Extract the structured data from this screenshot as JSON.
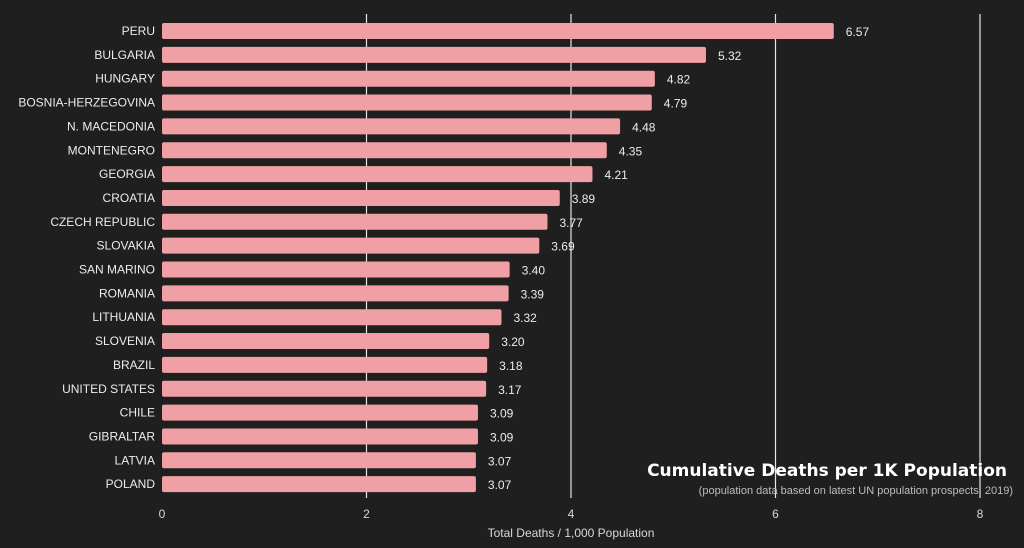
{
  "chart_data": {
    "type": "bar",
    "orientation": "horizontal",
    "categories": [
      "PERU",
      "BULGARIA",
      "HUNGARY",
      "BOSNIA-HERZEGOVINA",
      "N. MACEDONIA",
      "MONTENEGRO",
      "GEORGIA",
      "CROATIA",
      "CZECH REPUBLIC",
      "SLOVAKIA",
      "SAN MARINO",
      "ROMANIA",
      "LITHUANIA",
      "SLOVENIA",
      "BRAZIL",
      "UNITED STATES",
      "CHILE",
      "GIBRALTAR",
      "LATVIA",
      "POLAND"
    ],
    "values": [
      6.57,
      5.32,
      4.82,
      4.79,
      4.48,
      4.35,
      4.21,
      3.89,
      3.77,
      3.69,
      3.4,
      3.39,
      3.32,
      3.2,
      3.18,
      3.17,
      3.09,
      3.09,
      3.07,
      3.07
    ],
    "value_labels": [
      "6.57",
      "5.32",
      "4.82",
      "4.79",
      "4.48",
      "4.35",
      "4.21",
      "3.89",
      "3.77",
      "3.69",
      "3.40",
      "3.39",
      "3.32",
      "3.20",
      "3.18",
      "3.17",
      "3.09",
      "3.09",
      "3.07",
      "3.07"
    ],
    "xlabel": "Total Deaths / 1,000 Population",
    "ylabel": "",
    "xlim": [
      0,
      8
    ],
    "xticks": [
      0,
      2,
      4,
      6,
      8
    ],
    "xtick_labels": [
      "0",
      "2",
      "4",
      "6",
      "8"
    ],
    "grid": "vertical",
    "bar_color": "#f0a0a4",
    "background_color": "#1f1f1f",
    "grid_color": "#e6e6e6",
    "annotation": {
      "title": "Cumulative Deaths per 1K Population",
      "subtitle": "(population data based on latest UN population prospects, 2019)"
    }
  }
}
